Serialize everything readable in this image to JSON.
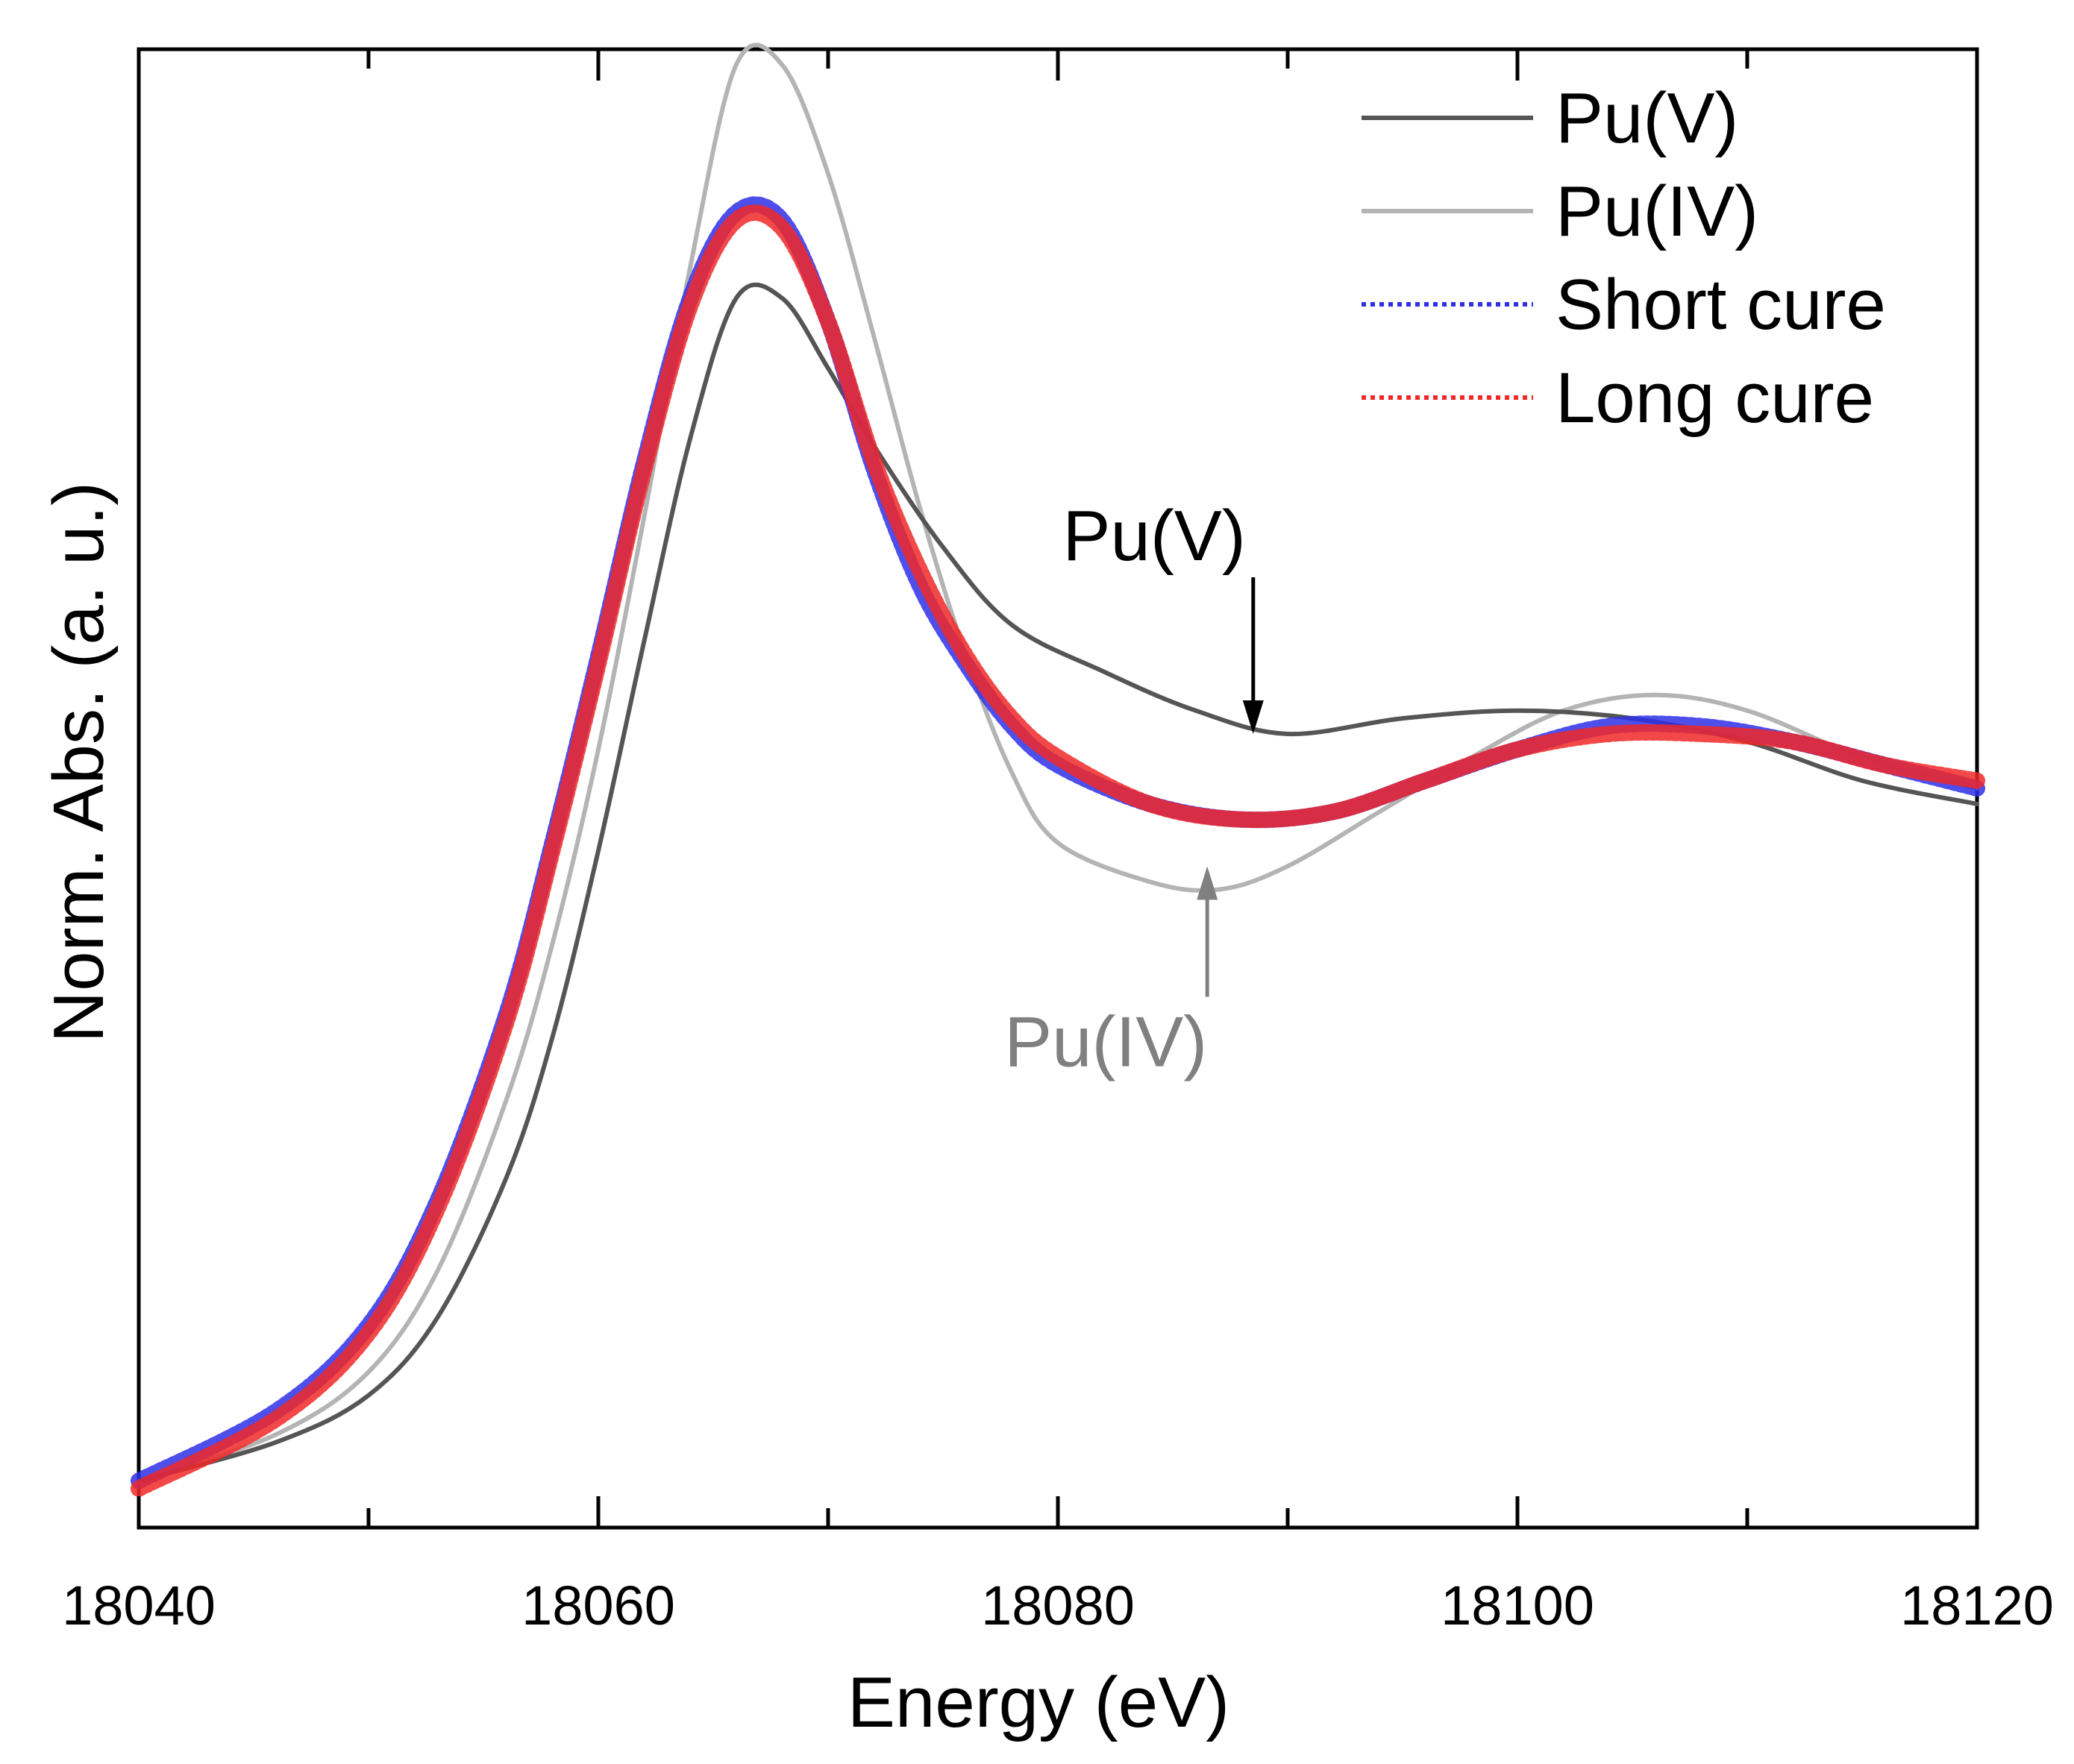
{
  "chart_data": {
    "type": "line",
    "title": "",
    "xlabel": "Energy (eV)",
    "ylabel": "Norm. Abs. (a. u.)",
    "xlim": [
      18040,
      18120
    ],
    "ylim": [
      0,
      1.9
    ],
    "x_ticks": [
      18040,
      18060,
      18080,
      18100,
      18120
    ],
    "y_ticks_shown": false,
    "grid": false,
    "legend": {
      "placement": "top-right",
      "entries": [
        {
          "label": "Pu(V)",
          "color": "#555555",
          "style": "solid"
        },
        {
          "label": "Pu(IV)",
          "color": "#b4b4b4",
          "style": "solid"
        },
        {
          "label": "Short cure",
          "color": "#2f2fe8",
          "style": "dotted"
        },
        {
          "label": "Long cure",
          "color": "#f02828",
          "style": "dotted"
        }
      ]
    },
    "annotations": [
      {
        "label": "Pu(V)",
        "color": "#000000",
        "x": 18088.5,
        "y": 1.02,
        "direction": "down"
      },
      {
        "label": "Pu(IV)",
        "color": "#808080",
        "x": 18086.5,
        "y": 0.85,
        "direction": "up"
      }
    ],
    "series": [
      {
        "name": "Pu(V)",
        "color": "#555555",
        "style": "solid",
        "points": [
          [
            18040,
            0.06
          ],
          [
            18046,
            0.11
          ],
          [
            18050,
            0.17
          ],
          [
            18053,
            0.27
          ],
          [
            18056,
            0.45
          ],
          [
            18058,
            0.63
          ],
          [
            18060,
            0.87
          ],
          [
            18062,
            1.14
          ],
          [
            18064,
            1.4
          ],
          [
            18066,
            1.58
          ],
          [
            18068,
            1.58
          ],
          [
            18070,
            1.49
          ],
          [
            18072,
            1.39
          ],
          [
            18075,
            1.26
          ],
          [
            18078,
            1.16
          ],
          [
            18082,
            1.1
          ],
          [
            18086,
            1.05
          ],
          [
            18090,
            1.02
          ],
          [
            18095,
            1.04
          ],
          [
            18100,
            1.05
          ],
          [
            18105,
            1.04
          ],
          [
            18110,
            1.01
          ],
          [
            18115,
            0.96
          ],
          [
            18120,
            0.93
          ]
        ]
      },
      {
        "name": "Pu(IV)",
        "color": "#b4b4b4",
        "style": "solid",
        "points": [
          [
            18040,
            0.06
          ],
          [
            18046,
            0.12
          ],
          [
            18050,
            0.2
          ],
          [
            18053,
            0.33
          ],
          [
            18056,
            0.55
          ],
          [
            18058,
            0.75
          ],
          [
            18060,
            1.0
          ],
          [
            18062,
            1.3
          ],
          [
            18064,
            1.62
          ],
          [
            18066,
            1.88
          ],
          [
            18068,
            1.88
          ],
          [
            18070,
            1.74
          ],
          [
            18072,
            1.53
          ],
          [
            18074,
            1.31
          ],
          [
            18076,
            1.12
          ],
          [
            18078,
            0.97
          ],
          [
            18080,
            0.88
          ],
          [
            18084,
            0.83
          ],
          [
            18087,
            0.82
          ],
          [
            18090,
            0.85
          ],
          [
            18094,
            0.92
          ],
          [
            18098,
            0.99
          ],
          [
            18102,
            1.05
          ],
          [
            18106,
            1.07
          ],
          [
            18110,
            1.05
          ],
          [
            18115,
            0.99
          ],
          [
            18120,
            0.95
          ]
        ]
      },
      {
        "name": "Short cure",
        "color": "#2f2fe8",
        "style": "dotted",
        "points": [
          [
            18040,
            0.06
          ],
          [
            18046,
            0.15
          ],
          [
            18050,
            0.26
          ],
          [
            18053,
            0.42
          ],
          [
            18056,
            0.66
          ],
          [
            18058,
            0.88
          ],
          [
            18060,
            1.12
          ],
          [
            18062,
            1.37
          ],
          [
            18064,
            1.58
          ],
          [
            18066,
            1.69
          ],
          [
            18068,
            1.68
          ],
          [
            18070,
            1.55
          ],
          [
            18072,
            1.36
          ],
          [
            18074,
            1.21
          ],
          [
            18076,
            1.11
          ],
          [
            18078,
            1.03
          ],
          [
            18080,
            0.98
          ],
          [
            18084,
            0.93
          ],
          [
            18088,
            0.91
          ],
          [
            18092,
            0.92
          ],
          [
            18096,
            0.96
          ],
          [
            18100,
            1.0
          ],
          [
            18104,
            1.03
          ],
          [
            18108,
            1.03
          ],
          [
            18112,
            1.01
          ],
          [
            18116,
            0.98
          ],
          [
            18120,
            0.95
          ]
        ]
      },
      {
        "name": "Long cure",
        "color": "#f02828",
        "style": "dotted",
        "points": [
          [
            18040,
            0.05
          ],
          [
            18046,
            0.14
          ],
          [
            18050,
            0.25
          ],
          [
            18053,
            0.41
          ],
          [
            18056,
            0.65
          ],
          [
            18058,
            0.87
          ],
          [
            18060,
            1.11
          ],
          [
            18062,
            1.36
          ],
          [
            18064,
            1.57
          ],
          [
            18066,
            1.68
          ],
          [
            18068,
            1.67
          ],
          [
            18070,
            1.55
          ],
          [
            18072,
            1.37
          ],
          [
            18074,
            1.23
          ],
          [
            18076,
            1.12
          ],
          [
            18078,
            1.04
          ],
          [
            18080,
            0.99
          ],
          [
            18084,
            0.93
          ],
          [
            18088,
            0.91
          ],
          [
            18092,
            0.92
          ],
          [
            18096,
            0.96
          ],
          [
            18100,
            1.0
          ],
          [
            18104,
            1.02
          ],
          [
            18108,
            1.02
          ],
          [
            18112,
            1.01
          ],
          [
            18116,
            0.98
          ],
          [
            18120,
            0.96
          ]
        ]
      }
    ]
  }
}
